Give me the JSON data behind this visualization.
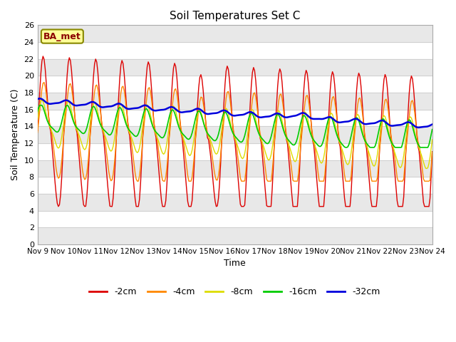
{
  "title": "Soil Temperatures Set C",
  "xlabel": "Time",
  "ylabel": "Soil Temperature (C)",
  "ylim": [
    0,
    26
  ],
  "yticks": [
    0,
    2,
    4,
    6,
    8,
    10,
    12,
    14,
    16,
    18,
    20,
    22,
    24,
    26
  ],
  "xtick_labels": [
    "Nov 9",
    "Nov 10",
    "Nov 11",
    "Nov 12",
    "Nov 13",
    "Nov 14",
    "Nov 15",
    "Nov 16",
    "Nov 17",
    "Nov 18",
    "Nov 19",
    "Nov 20",
    "Nov 21",
    "Nov 22",
    "Nov 23",
    "Nov 24"
  ],
  "series_colors": [
    "#dd0000",
    "#ff8800",
    "#dddd00",
    "#00cc00",
    "#0000dd"
  ],
  "series_labels": [
    "-2cm",
    "-4cm",
    "-8cm",
    "-16cm",
    "-32cm"
  ],
  "legend_colors": [
    "#dd0000",
    "#ff8800",
    "#dddd00",
    "#00cc00",
    "#0000dd"
  ],
  "bg_color": "#ffffff",
  "stripe_color": "#e8e8e8",
  "grid_color": "#cccccc",
  "annotation_text": "BA_met",
  "annotation_bg": "#ffff99",
  "annotation_border": "#888800"
}
